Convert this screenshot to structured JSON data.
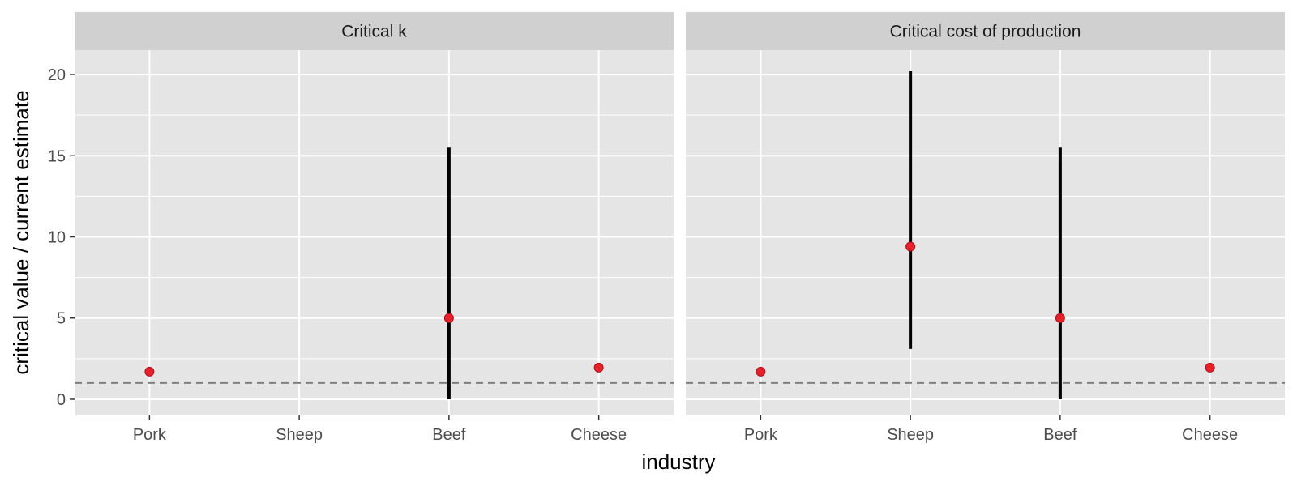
{
  "chart_data": {
    "type": "errorbar",
    "xlabel": "industry",
    "ylabel": "critical value / current estimate",
    "categories": [
      "Pork",
      "Sheep",
      "Beef",
      "Cheese"
    ],
    "ylim": [
      -1,
      21.5
    ],
    "yticks": [
      0,
      5,
      10,
      15,
      20
    ],
    "reference_line": {
      "y": 1,
      "style": "dashed"
    },
    "grid": true,
    "panels": [
      {
        "title": "Critical k",
        "points": [
          {
            "category": "Pork",
            "value": 1.7,
            "low": null,
            "high": null
          },
          {
            "category": "Sheep",
            "value": null,
            "low": null,
            "high": null
          },
          {
            "category": "Beef",
            "value": 5.0,
            "low": 0.0,
            "high": 15.5
          },
          {
            "category": "Cheese",
            "value": 1.95,
            "low": null,
            "high": null
          }
        ]
      },
      {
        "title": "Critical cost of production",
        "points": [
          {
            "category": "Pork",
            "value": 1.7,
            "low": null,
            "high": null
          },
          {
            "category": "Sheep",
            "value": 9.4,
            "low": 3.1,
            "high": 20.2
          },
          {
            "category": "Beef",
            "value": 5.0,
            "low": 0.0,
            "high": 15.5
          },
          {
            "category": "Cheese",
            "value": 1.95,
            "low": null,
            "high": null
          }
        ]
      }
    ],
    "colors": {
      "panel_background": "#e5e5e5",
      "strip_background": "#d0d0d0",
      "grid": "#ffffff",
      "point": "#e8202a",
      "errorbar": "#000000",
      "reference_line": "#7f7f7f"
    }
  }
}
